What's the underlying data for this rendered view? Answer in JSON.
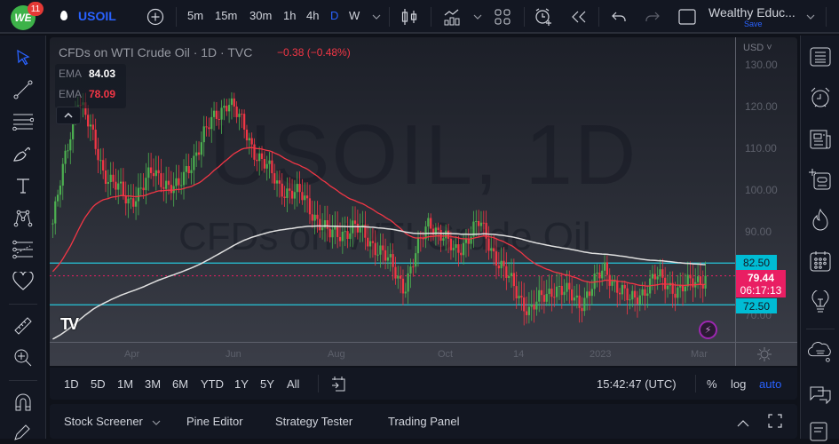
{
  "header": {
    "notification_count": "11",
    "symbol": "USOIL",
    "intervals": [
      "5m",
      "15m",
      "30m",
      "1h",
      "4h",
      "D",
      "W"
    ],
    "active_interval": "D",
    "layout_name": "Wealthy Educ...",
    "layout_save": "Save"
  },
  "chart": {
    "title": "CFDs on WTI Crude Oil · 1D · TVC",
    "change": "−0.38 (−0.48%)",
    "watermark_symbol": "USOIL, 1D",
    "watermark_desc": "CFDs on WTI Crude Oil",
    "indicators": [
      {
        "label": "EMA",
        "value": "84.03",
        "color": "#ffffff"
      },
      {
        "label": "EMA",
        "value": "78.09",
        "color": "#f23645"
      }
    ],
    "currency": "USD",
    "price_ticks": [
      "130.00",
      "120.00",
      "110.00",
      "100.00",
      "90.00",
      "70.00"
    ],
    "time_ticks": [
      "Apr",
      "Jun",
      "Aug",
      "Oct",
      "14",
      "2023",
      "Mar"
    ],
    "price_labels": {
      "upper_line": "82.50",
      "current_price": "79.44",
      "countdown": "06:17:13",
      "lower_line": "72.50"
    },
    "colors": {
      "up": "#4caf50",
      "down": "#f23645",
      "ema_fast": "#f23645",
      "ema_slow": "#e0e0e0",
      "horizontal_line": "#26c6da",
      "price_label_bg": "#e91e63",
      "line_label_bg": "#00bcd4"
    }
  },
  "chart_data": {
    "type": "candlestick",
    "title": "CFDs on WTI Crude Oil · 1D · TVC",
    "symbol": "USOIL",
    "timeframe": "1D",
    "x_ticks": [
      "Apr",
      "Jun",
      "Aug",
      "Oct",
      "14",
      "2023",
      "Mar"
    ],
    "y_ticks": [
      70,
      80,
      90,
      100,
      110,
      120,
      130
    ],
    "ylim": [
      67,
      132
    ],
    "last_price": 79.44,
    "change": -0.38,
    "change_pct": -0.48,
    "ema_fast_value": 78.09,
    "ema_slow_value": 84.03,
    "horizontal_levels": [
      82.5,
      72.5
    ],
    "approx_close_path": [
      {
        "t": "Feb-22",
        "close": 92
      },
      {
        "t": "Mar-08",
        "close": 123
      },
      {
        "t": "Mar-20",
        "close": 105
      },
      {
        "t": "Apr-10",
        "close": 97
      },
      {
        "t": "Apr-25",
        "close": 104
      },
      {
        "t": "May-10",
        "close": 100
      },
      {
        "t": "May-25",
        "close": 113
      },
      {
        "t": "Jun-10",
        "close": 122
      },
      {
        "t": "Jun-20",
        "close": 110
      },
      {
        "t": "Jul-05",
        "close": 101
      },
      {
        "t": "Jul-20",
        "close": 98
      },
      {
        "t": "Aug-05",
        "close": 89
      },
      {
        "t": "Aug-20",
        "close": 91
      },
      {
        "t": "Sep-05",
        "close": 86
      },
      {
        "t": "Sep-25",
        "close": 77
      },
      {
        "t": "Oct-10",
        "close": 93
      },
      {
        "t": "Oct-25",
        "close": 85
      },
      {
        "t": "Nov-07",
        "close": 92
      },
      {
        "t": "Nov-20",
        "close": 80
      },
      {
        "t": "Dec-08",
        "close": 71
      },
      {
        "t": "Dec-20",
        "close": 77
      },
      {
        "t": "Jan-05",
        "close": 73
      },
      {
        "t": "Jan-25",
        "close": 81
      },
      {
        "t": "Feb-08",
        "close": 73
      },
      {
        "t": "Feb-20",
        "close": 79
      },
      {
        "t": "Mar-01",
        "close": 76
      },
      {
        "t": "Mar-07",
        "close": 79.44
      }
    ]
  },
  "bottom_toolbar": {
    "ranges": [
      "1D",
      "5D",
      "1M",
      "3M",
      "6M",
      "YTD",
      "1Y",
      "5Y",
      "All"
    ],
    "clock": "15:42:47 (UTC)",
    "percent": "%",
    "log": "log",
    "auto": "auto"
  },
  "panels": {
    "stock_screener": "Stock Screener",
    "pine_editor": "Pine Editor",
    "strategy_tester": "Strategy Tester",
    "trading_panel": "Trading Panel"
  }
}
